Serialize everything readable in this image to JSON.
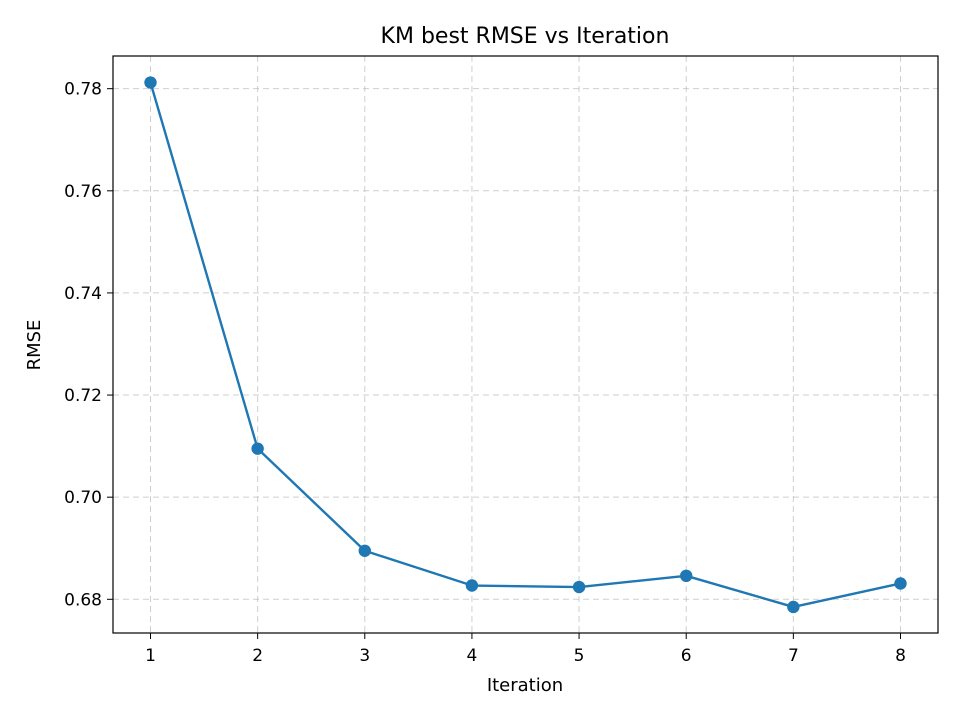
{
  "chart_data": {
    "type": "line",
    "title": "KM best RMSE vs Iteration",
    "xlabel": "Iteration",
    "ylabel": "RMSE",
    "x": [
      1,
      2,
      3,
      4,
      5,
      6,
      7,
      8
    ],
    "series": [
      {
        "values": [
          0.7812,
          0.7095,
          0.6895,
          0.6827,
          0.6824,
          0.6846,
          0.6785,
          0.6831
        ],
        "color": "#1f77b4",
        "marker": "circle"
      }
    ],
    "xticks": [
      "1",
      "2",
      "3",
      "4",
      "5",
      "6",
      "7",
      "8"
    ],
    "yticks": [
      "0.68",
      "0.70",
      "0.72",
      "0.74",
      "0.76",
      "0.78"
    ],
    "xlim": [
      0.65,
      8.35
    ],
    "ylim": [
      0.6734,
      0.7864
    ],
    "grid": true
  }
}
